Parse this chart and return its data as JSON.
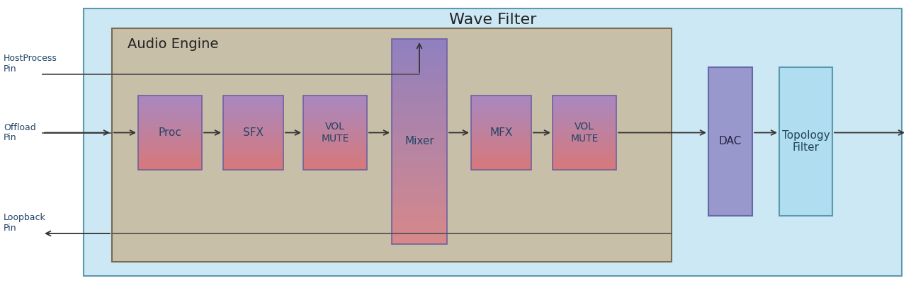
{
  "figsize": [
    12.86,
    4.0
  ],
  "dpi": 100,
  "wave_filter_bg": "#cce8f4",
  "wave_filter_border": "#5a9ab0",
  "audio_engine_bg": "#c8bfa8",
  "audio_engine_border": "#7a6a50",
  "dac_facecolor": "#9898cc",
  "dac_edgecolor": "#6868a8",
  "topology_facecolor": "#b0ddf0",
  "topology_edgecolor": "#5a9ab0",
  "box_top_color": "#a888c0",
  "box_bot_color": "#d87878",
  "mixer_top_color": "#9080c0",
  "mixer_bot_color": "#d88888",
  "box_edge_color": "#7060a0",
  "arrow_color": "#333333",
  "wave_filter_title": "Wave Filter",
  "audio_engine_title": "Audio Engine",
  "host_process_label": "HostProcess\nPin",
  "offload_label": "Offload\nPin",
  "loopback_label": "Loopback\nPin",
  "dac_label": "DAC",
  "topology_label": "Topology\nFilter",
  "label_color": "#224466",
  "title_color": "#222222"
}
